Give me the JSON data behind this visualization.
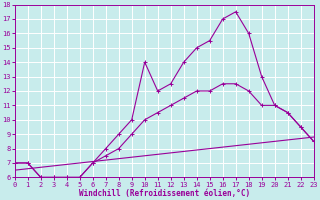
{
  "xlabel": "Windchill (Refroidissement éolien,°C)",
  "xlim": [
    0,
    23
  ],
  "ylim": [
    6,
    18
  ],
  "xticks": [
    0,
    1,
    2,
    3,
    4,
    5,
    6,
    7,
    8,
    9,
    10,
    11,
    12,
    13,
    14,
    15,
    16,
    17,
    18,
    19,
    20,
    21,
    22,
    23
  ],
  "yticks": [
    6,
    7,
    8,
    9,
    10,
    11,
    12,
    13,
    14,
    15,
    16,
    17,
    18
  ],
  "bg_color": "#c8ecec",
  "line_color": "#990099",
  "grid_color": "#ffffff",
  "line1_x": [
    0,
    1,
    2,
    3,
    4,
    5,
    6,
    7,
    8,
    9,
    10,
    11,
    12,
    13,
    14,
    15,
    16,
    17,
    18,
    19,
    20,
    21,
    22,
    23
  ],
  "line1_y": [
    7,
    7,
    6,
    6,
    6,
    6,
    7,
    8,
    9,
    10,
    14,
    12,
    12.5,
    14,
    15,
    15.5,
    17,
    17.5,
    16,
    13,
    11,
    10.5,
    9.5,
    8.5
  ],
  "line2_x": [
    0,
    1,
    2,
    3,
    4,
    5,
    6,
    7,
    8,
    9,
    10,
    11,
    12,
    13,
    14,
    15,
    16,
    17,
    18,
    19,
    20,
    21,
    22,
    23
  ],
  "line2_y": [
    7,
    7,
    6,
    6,
    6,
    6,
    7,
    7.5,
    8,
    9,
    10,
    10.5,
    11,
    11.5,
    12,
    12,
    12.5,
    12.5,
    12,
    11,
    11,
    10.5,
    9.5,
    8.5
  ],
  "line3_x": [
    0,
    23
  ],
  "line3_y": [
    6.5,
    8.8
  ],
  "xlabel_fontsize": 5.5,
  "tick_fontsize": 5.0
}
